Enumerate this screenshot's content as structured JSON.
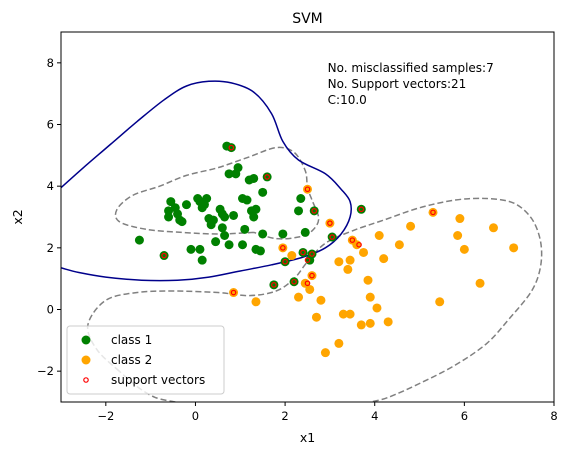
{
  "chart_data": {
    "type": "scatter",
    "title": "SVM",
    "xlabel": "x1",
    "ylabel": "x2",
    "xlim": [
      -3,
      8
    ],
    "ylim": [
      -3,
      9
    ],
    "xticks": [
      -2,
      0,
      2,
      4,
      6,
      8
    ],
    "yticks": [
      -2,
      0,
      2,
      4,
      6,
      8
    ],
    "grid": false,
    "legend_position": "lower-left",
    "annotations": [
      "No. misclassified samples:7",
      "No. Support vectors:21",
      "C:10.0"
    ],
    "series": [
      {
        "name": "class 1",
        "color": "#008000",
        "points": [
          [
            -1.25,
            2.25
          ],
          [
            -0.7,
            1.75
          ],
          [
            -0.6,
            3.2
          ],
          [
            -0.6,
            3.0
          ],
          [
            -0.55,
            3.5
          ],
          [
            -0.45,
            3.3
          ],
          [
            -0.4,
            3.1
          ],
          [
            -0.35,
            2.9
          ],
          [
            -0.3,
            2.85
          ],
          [
            -0.2,
            3.4
          ],
          [
            -0.1,
            1.95
          ],
          [
            0.05,
            3.6
          ],
          [
            0.1,
            3.5
          ],
          [
            0.1,
            1.95
          ],
          [
            0.15,
            1.6
          ],
          [
            0.15,
            3.3
          ],
          [
            0.2,
            3.4
          ],
          [
            0.25,
            3.6
          ],
          [
            0.3,
            2.95
          ],
          [
            0.35,
            2.75
          ],
          [
            0.4,
            2.9
          ],
          [
            0.45,
            2.2
          ],
          [
            0.55,
            3.25
          ],
          [
            0.6,
            2.65
          ],
          [
            0.65,
            3.0
          ],
          [
            0.6,
            3.1
          ],
          [
            0.7,
            5.3
          ],
          [
            0.65,
            2.4
          ],
          [
            0.75,
            2.1
          ],
          [
            0.8,
            5.25
          ],
          [
            0.75,
            4.4
          ],
          [
            0.9,
            4.4
          ],
          [
            0.85,
            3.05
          ],
          [
            0.95,
            4.6
          ],
          [
            1.05,
            3.6
          ],
          [
            1.1,
            2.6
          ],
          [
            1.05,
            2.1
          ],
          [
            1.15,
            3.55
          ],
          [
            1.2,
            4.2
          ],
          [
            1.25,
            3.2
          ],
          [
            1.3,
            4.25
          ],
          [
            1.3,
            3.0
          ],
          [
            1.35,
            1.95
          ],
          [
            1.35,
            3.25
          ],
          [
            1.45,
            1.9
          ],
          [
            1.5,
            3.8
          ],
          [
            1.5,
            2.45
          ],
          [
            1.6,
            4.3
          ],
          [
            1.75,
            0.8
          ],
          [
            1.95,
            2.45
          ],
          [
            2.0,
            1.55
          ],
          [
            2.2,
            0.9
          ],
          [
            2.3,
            3.2
          ],
          [
            2.35,
            3.6
          ],
          [
            2.4,
            1.85
          ],
          [
            2.45,
            2.5
          ],
          [
            2.55,
            1.6
          ],
          [
            2.6,
            1.8
          ],
          [
            2.65,
            3.2
          ],
          [
            3.05,
            2.35
          ],
          [
            3.7,
            3.25
          ]
        ]
      },
      {
        "name": "class 2",
        "color": "#FFA500",
        "points": [
          [
            0.85,
            0.55
          ],
          [
            1.35,
            0.25
          ],
          [
            1.95,
            2.0
          ],
          [
            2.15,
            1.75
          ],
          [
            2.3,
            0.4
          ],
          [
            2.45,
            0.85
          ],
          [
            2.5,
            3.9
          ],
          [
            2.55,
            0.65
          ],
          [
            2.6,
            1.1
          ],
          [
            2.7,
            -0.25
          ],
          [
            2.8,
            0.3
          ],
          [
            2.9,
            -1.4
          ],
          [
            3.0,
            2.8
          ],
          [
            3.2,
            1.55
          ],
          [
            3.2,
            -1.1
          ],
          [
            3.3,
            -0.15
          ],
          [
            3.4,
            1.3
          ],
          [
            3.45,
            -0.15
          ],
          [
            3.45,
            1.6
          ],
          [
            3.5,
            2.25
          ],
          [
            3.6,
            2.1
          ],
          [
            3.7,
            -0.5
          ],
          [
            3.75,
            1.85
          ],
          [
            3.85,
            0.95
          ],
          [
            3.9,
            0.4
          ],
          [
            3.9,
            -0.45
          ],
          [
            4.05,
            0.05
          ],
          [
            4.1,
            2.4
          ],
          [
            4.2,
            1.65
          ],
          [
            4.3,
            -0.4
          ],
          [
            4.55,
            2.1
          ],
          [
            4.8,
            2.7
          ],
          [
            5.3,
            3.15
          ],
          [
            5.45,
            0.25
          ],
          [
            5.85,
            2.4
          ],
          [
            5.9,
            2.95
          ],
          [
            6.0,
            1.95
          ],
          [
            6.35,
            0.85
          ],
          [
            6.65,
            2.65
          ],
          [
            7.1,
            2.0
          ]
        ]
      },
      {
        "name": "support vectors",
        "color": "#FF0000",
        "points": [
          [
            0.8,
            5.25
          ],
          [
            1.6,
            4.3
          ],
          [
            2.5,
            3.9
          ],
          [
            2.65,
            3.2
          ],
          [
            3.0,
            2.8
          ],
          [
            3.7,
            3.25
          ],
          [
            5.3,
            3.15
          ],
          [
            3.5,
            2.25
          ],
          [
            3.65,
            2.1
          ],
          [
            3.05,
            2.35
          ],
          [
            1.95,
            2.0
          ],
          [
            2.0,
            1.55
          ],
          [
            2.6,
            1.8
          ],
          [
            2.4,
            1.85
          ],
          [
            2.5,
            1.6
          ],
          [
            2.6,
            1.1
          ],
          [
            2.5,
            0.85
          ],
          [
            2.2,
            0.9
          ],
          [
            1.75,
            0.8
          ],
          [
            0.85,
            0.55
          ],
          [
            -0.7,
            1.75
          ]
        ]
      }
    ],
    "decision_boundary": {
      "color": "#00008B",
      "style": "solid",
      "segments": [
        [
          [
            -3,
            3.95
          ],
          [
            -2.5,
            4.6
          ],
          [
            -1.9,
            5.35
          ],
          [
            -1.3,
            6.1
          ],
          [
            -0.7,
            6.8
          ],
          [
            -0.2,
            7.25
          ],
          [
            0.3,
            7.4
          ],
          [
            0.8,
            7.35
          ],
          [
            1.3,
            7.05
          ],
          [
            1.7,
            6.35
          ],
          [
            1.95,
            5.45
          ],
          [
            2.3,
            4.85
          ],
          [
            2.9,
            4.4
          ],
          [
            3.25,
            3.9
          ],
          [
            3.45,
            3.5
          ],
          [
            3.45,
            3.0
          ],
          [
            3.25,
            2.45
          ],
          [
            2.9,
            2.0
          ],
          [
            2.4,
            1.7
          ],
          [
            1.7,
            1.45
          ],
          [
            1.0,
            1.25
          ],
          [
            0.3,
            1.05
          ],
          [
            -0.4,
            0.95
          ],
          [
            -1.2,
            0.95
          ],
          [
            -2.0,
            1.05
          ],
          [
            -2.6,
            1.2
          ],
          [
            -3,
            1.35
          ]
        ]
      ]
    },
    "margins": {
      "color": "#808080",
      "style": "dashed",
      "segments": [
        [
          [
            1.3,
            2.5
          ],
          [
            0.5,
            2.45
          ],
          [
            -0.3,
            2.5
          ],
          [
            -1.1,
            2.6
          ],
          [
            -1.7,
            2.85
          ],
          [
            -1.75,
            3.25
          ],
          [
            -1.4,
            3.7
          ],
          [
            -0.8,
            4.0
          ],
          [
            -0.2,
            4.35
          ],
          [
            0.5,
            4.6
          ],
          [
            1.2,
            4.95
          ],
          [
            1.8,
            5.25
          ],
          [
            2.2,
            5.1
          ],
          [
            2.45,
            4.5
          ],
          [
            2.5,
            3.95
          ],
          [
            2.6,
            3.55
          ],
          [
            2.75,
            2.95
          ],
          [
            2.6,
            2.55
          ],
          [
            2.3,
            2.35
          ],
          [
            1.8,
            2.3
          ],
          [
            1.3,
            2.5
          ]
        ],
        [
          [
            -1.7,
            -2.0
          ],
          [
            -2.2,
            -1.3
          ],
          [
            -2.4,
            -0.5
          ],
          [
            -2.0,
            0.3
          ],
          [
            -1.3,
            0.55
          ],
          [
            -0.5,
            0.6
          ],
          [
            0.5,
            0.55
          ],
          [
            1.2,
            0.45
          ],
          [
            1.8,
            0.6
          ],
          [
            2.2,
            1.0
          ],
          [
            2.5,
            1.55
          ],
          [
            2.9,
            2.15
          ],
          [
            3.5,
            2.55
          ],
          [
            4.2,
            2.9
          ],
          [
            5.0,
            3.3
          ],
          [
            5.8,
            3.55
          ],
          [
            6.5,
            3.6
          ],
          [
            7.1,
            3.45
          ],
          [
            7.5,
            2.95
          ],
          [
            7.7,
            2.2
          ],
          [
            7.7,
            1.4
          ],
          [
            7.5,
            0.6
          ],
          [
            7.0,
            -0.3
          ],
          [
            6.5,
            -1.1
          ],
          [
            5.8,
            -1.8
          ],
          [
            5.0,
            -2.4
          ],
          [
            4.3,
            -2.85
          ],
          [
            3.9,
            -3.0
          ]
        ],
        [
          [
            -0.45,
            -3.0
          ],
          [
            -0.9,
            -2.85
          ],
          [
            -1.3,
            -2.5
          ],
          [
            -1.7,
            -2.0
          ]
        ]
      ]
    }
  }
}
